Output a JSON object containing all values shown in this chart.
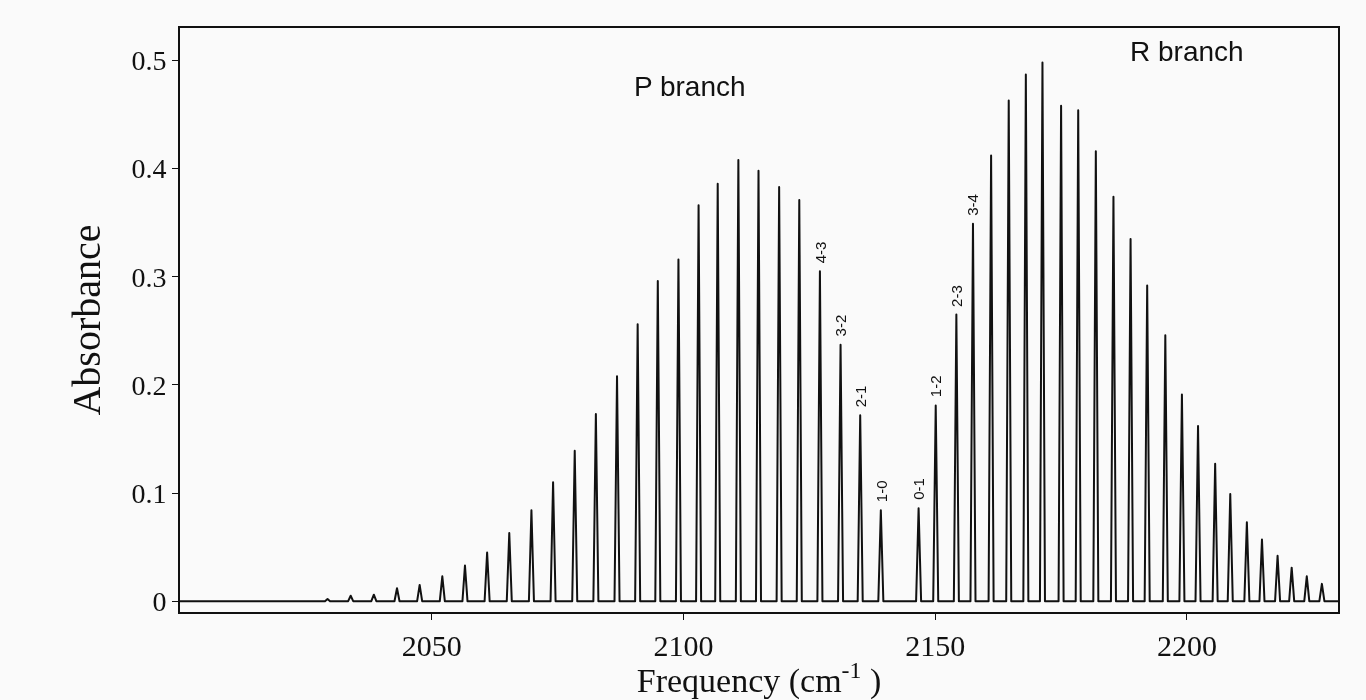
{
  "chart_data": {
    "type": "line",
    "xlabel": "Frequency (cm$^{-1}$ )",
    "ylabel": "Absorbance",
    "xlim": [
      2000,
      2230
    ],
    "ylim": [
      -0.01,
      0.53
    ],
    "xticks": [
      2050,
      2100,
      2150,
      2200
    ],
    "yticks": [
      0,
      0.1,
      0.2,
      0.3,
      0.4,
      0.5
    ],
    "grid": false,
    "marker": "none",
    "line_style": "solid",
    "series": [
      {
        "color": "#111111",
        "x": [
          2000,
          2028.8,
          2029.3,
          2029.8,
          2033.4,
          2033.9,
          2034.4,
          2038.0,
          2038.5,
          2039.0,
          2042.6,
          2043.1,
          2043.6,
          2047.1,
          2047.6,
          2048.1,
          2051.6,
          2052.1,
          2052.6,
          2056.1,
          2056.6,
          2057.1,
          2060.5,
          2061.0,
          2061.5,
          2064.9,
          2065.4,
          2065.9,
          2069.3,
          2069.8,
          2070.3,
          2073.6,
          2074.1,
          2074.6,
          2077.9,
          2078.4,
          2078.9,
          2082.1,
          2082.6,
          2083.1,
          2086.3,
          2086.8,
          2087.3,
          2090.4,
          2090.9,
          2091.4,
          2094.4,
          2094.9,
          2095.4,
          2098.5,
          2099.0,
          2099.5,
          2102.5,
          2103.0,
          2103.5,
          2106.3,
          2106.8,
          2107.3,
          2110.4,
          2110.9,
          2111.4,
          2114.4,
          2114.9,
          2115.4,
          2118.5,
          2119.0,
          2119.5,
          2122.5,
          2123.0,
          2123.5,
          2126.6,
          2127.1,
          2127.6,
          2130.7,
          2131.2,
          2131.7,
          2134.6,
          2135.1,
          2135.6,
          2138.7,
          2139.2,
          2139.7,
          2146.2,
          2146.7,
          2147.2,
          2149.6,
          2150.1,
          2150.6,
          2153.7,
          2154.2,
          2154.7,
          2157.0,
          2157.5,
          2158.0,
          2160.6,
          2161.1,
          2161.6,
          2164.1,
          2164.6,
          2165.1,
          2167.5,
          2168.0,
          2168.5,
          2170.8,
          2171.3,
          2171.8,
          2174.5,
          2175.0,
          2175.5,
          2177.9,
          2178.4,
          2178.9,
          2181.4,
          2181.9,
          2182.4,
          2184.9,
          2185.4,
          2185.9,
          2188.3,
          2188.8,
          2189.3,
          2191.6,
          2192.1,
          2192.6,
          2195.2,
          2195.7,
          2196.2,
          2198.5,
          2199.0,
          2199.5,
          2201.7,
          2202.2,
          2202.7,
          2205.1,
          2205.6,
          2206.1,
          2208.1,
          2208.6,
          2209.1,
          2211.4,
          2211.9,
          2212.4,
          2214.4,
          2214.9,
          2215.4,
          2217.5,
          2218.0,
          2218.5,
          2220.3,
          2220.8,
          2221.3,
          2223.3,
          2223.8,
          2224.3,
          2226.3,
          2226.8,
          2227.3,
          2230
        ],
        "values": [
          0,
          0,
          0.002,
          0,
          0,
          0.005,
          0,
          0,
          0.006,
          0,
          0,
          0.012,
          0,
          0,
          0.015,
          0,
          0,
          0.023,
          0,
          0,
          0.033,
          0,
          0,
          0.045,
          0,
          0,
          0.063,
          0,
          0,
          0.084,
          0,
          0,
          0.11,
          0,
          0,
          0.139,
          0,
          0,
          0.173,
          0,
          0,
          0.208,
          0,
          0,
          0.256,
          0,
          0,
          0.296,
          0,
          0,
          0.316,
          0,
          0,
          0.366,
          0,
          0,
          0.386,
          0,
          0,
          0.408,
          0,
          0,
          0.398,
          0,
          0,
          0.383,
          0,
          0,
          0.371,
          0,
          0,
          0.305,
          0,
          0,
          0.237,
          0,
          0,
          0.172,
          0,
          0,
          0.084,
          0,
          0,
          0.086,
          0,
          0,
          0.181,
          0,
          0,
          0.265,
          0,
          0,
          0.349,
          0,
          0,
          0.412,
          0,
          0,
          0.463,
          0,
          0,
          0.487,
          0,
          0,
          0.498,
          0,
          0,
          0.458,
          0,
          0,
          0.454,
          0,
          0,
          0.416,
          0,
          0,
          0.374,
          0,
          0,
          0.335,
          0,
          0,
          0.292,
          0,
          0,
          0.246,
          0,
          0,
          0.191,
          0,
          0,
          0.162,
          0,
          0,
          0.127,
          0,
          0,
          0.099,
          0,
          0,
          0.073,
          0,
          0,
          0.057,
          0,
          0,
          0.042,
          0,
          0,
          0.031,
          0,
          0,
          0.023,
          0,
          0,
          0.016,
          0,
          0
        ]
      }
    ],
    "annotations": [
      "P branch",
      "R branch",
      {
        "text": "4-3",
        "x": 2127.1,
        "y": 0.305
      },
      {
        "text": "3-2",
        "x": 2131.2,
        "y": 0.237
      },
      {
        "text": "2-1",
        "x": 2135.1,
        "y": 0.172
      },
      {
        "text": "1-0",
        "x": 2139.2,
        "y": 0.084
      },
      {
        "text": "0-1",
        "x": 2146.7,
        "y": 0.086
      },
      {
        "text": "1-2",
        "x": 2150.1,
        "y": 0.181
      },
      {
        "text": "2-3",
        "x": 2154.2,
        "y": 0.265
      },
      {
        "text": "3-4",
        "x": 2157.5,
        "y": 0.349
      }
    ]
  }
}
